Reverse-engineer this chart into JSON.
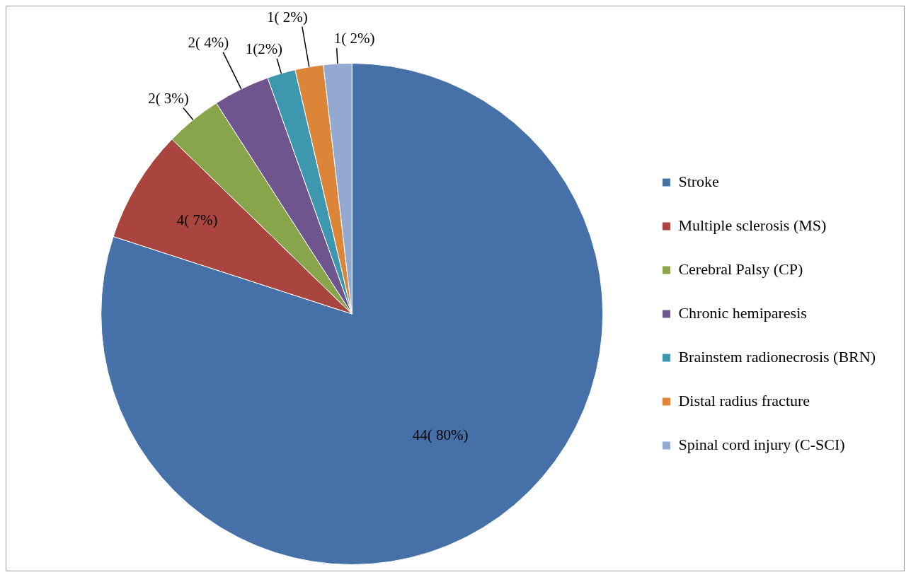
{
  "chart_data": {
    "type": "pie",
    "categories": [
      "Stroke",
      "Multiple sclerosis (MS)",
      "Cerebral Palsy (CP)",
      "Chronic hemiparesis",
      "Brainstem radionecrosis (BRN)",
      "Distal radius fracture",
      "Spinal cord injury (C-SCI)"
    ],
    "values": [
      44,
      4,
      2,
      2,
      1,
      1,
      1
    ],
    "colors": [
      "#4571a8",
      "#a9443f",
      "#88a54c",
      "#6f558e",
      "#3d98af",
      "#dc8437",
      "#94a9d2"
    ],
    "value_labels": [
      "44( 80%)",
      "4( 7%)",
      "2( 3%)",
      "2( 4%)",
      "1(2%)",
      "1( 2%)",
      "1( 2%)"
    ],
    "legend": "right"
  }
}
